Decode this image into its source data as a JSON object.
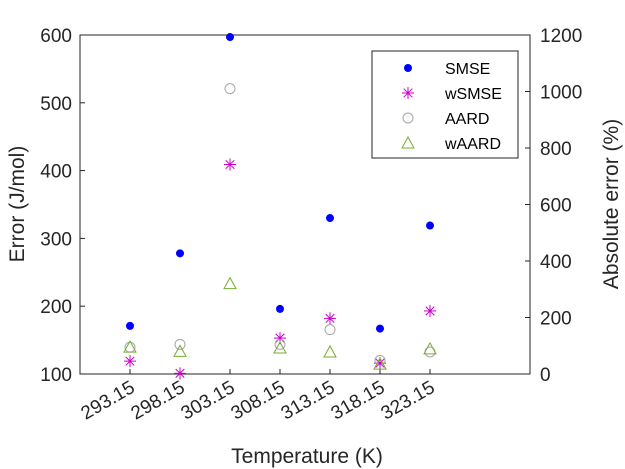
{
  "chart_data": {
    "type": "scatter",
    "xlabel": "Temperature (K)",
    "ylabel_left": "Error (J/mol)",
    "ylabel_right": "Absolute error (%)",
    "categories": [
      "293.15",
      "298.15",
      "303.15",
      "308.15",
      "313.15",
      "318.15",
      "323.15"
    ],
    "x_positions": [
      1,
      2,
      3,
      4,
      5,
      6,
      7
    ],
    "xlim": [
      0,
      9
    ],
    "ylim_left": [
      100,
      600
    ],
    "ylim_right": [
      0,
      1200
    ],
    "yticks_left": [
      100,
      200,
      300,
      400,
      500,
      600
    ],
    "yticks_right": [
      0,
      200,
      400,
      600,
      800,
      1000,
      1200
    ],
    "legend_position": "top-right",
    "series": [
      {
        "name": "SMSE",
        "axis": "left",
        "marker": "dot",
        "color": "#0000ff",
        "values": [
          171,
          278,
          597,
          196,
          330,
          167,
          319
        ]
      },
      {
        "name": "wSMSE",
        "axis": "left",
        "marker": "asterisk",
        "color": "#cc00cc",
        "values": [
          119,
          101,
          409,
          153,
          182,
          116,
          193
        ]
      },
      {
        "name": "AARD",
        "axis": "right",
        "marker": "circle",
        "color": "#a6a6a6",
        "values": [
          95,
          105,
          1010,
          105,
          157,
          48,
          78
        ]
      },
      {
        "name": "wAARD",
        "axis": "right",
        "marker": "triangle",
        "color": "#77ac30",
        "values": [
          95,
          80,
          320,
          92,
          78,
          35,
          89
        ]
      }
    ]
  }
}
